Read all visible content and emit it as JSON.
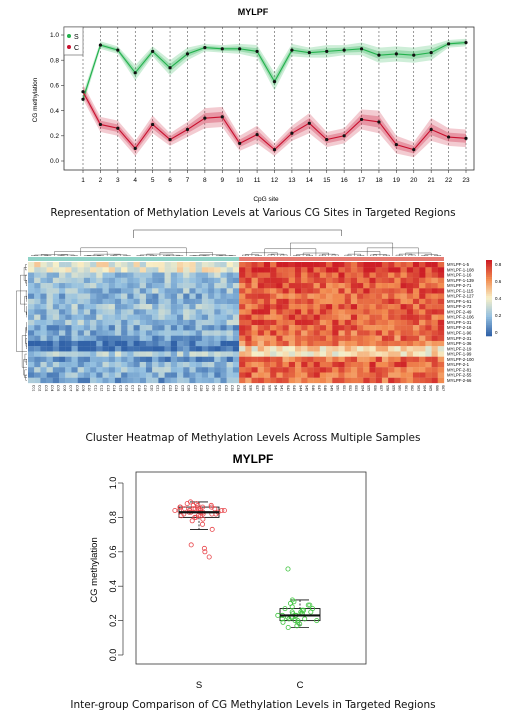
{
  "chart_data": [
    {
      "type": "line",
      "title": "MYLPF",
      "xlabel": "CpG site",
      "ylabel": "CG methylation",
      "ylim": [
        0,
        1.0
      ],
      "yticks": [
        "0.0",
        "0.2",
        "0.4",
        "0.6",
        "0.8",
        "1.0"
      ],
      "x": [
        1,
        2,
        3,
        4,
        5,
        6,
        7,
        8,
        9,
        10,
        11,
        12,
        13,
        14,
        15,
        16,
        17,
        18,
        19,
        20,
        21,
        22,
        23
      ],
      "legend_position": "top-left",
      "series": [
        {
          "name": "S",
          "color": "#22b14c",
          "values": [
            0.49,
            0.92,
            0.88,
            0.7,
            0.87,
            0.74,
            0.85,
            0.9,
            0.89,
            0.89,
            0.87,
            0.63,
            0.88,
            0.86,
            0.87,
            0.88,
            0.89,
            0.84,
            0.85,
            0.84,
            0.86,
            0.93,
            0.94
          ],
          "band": [
            0.05,
            0.03,
            0.03,
            0.06,
            0.04,
            0.06,
            0.05,
            0.03,
            0.03,
            0.04,
            0.05,
            0.07,
            0.05,
            0.04,
            0.05,
            0.04,
            0.05,
            0.06,
            0.06,
            0.06,
            0.06,
            0.03,
            0.03
          ]
        },
        {
          "name": "C",
          "color": "#c8102e",
          "values": [
            0.55,
            0.29,
            0.26,
            0.1,
            0.29,
            0.17,
            0.25,
            0.34,
            0.35,
            0.14,
            0.21,
            0.09,
            0.22,
            0.3,
            0.17,
            0.2,
            0.33,
            0.31,
            0.13,
            0.09,
            0.25,
            0.19,
            0.18
          ],
          "band": [
            0.06,
            0.06,
            0.06,
            0.06,
            0.07,
            0.05,
            0.06,
            0.08,
            0.08,
            0.06,
            0.07,
            0.05,
            0.06,
            0.08,
            0.06,
            0.06,
            0.08,
            0.09,
            0.07,
            0.06,
            0.09,
            0.07,
            0.07
          ]
        }
      ]
    },
    {
      "type": "heatmap",
      "row_labels": [
        "MYLPF-1-5",
        "MYLPF-1-108",
        "MYLPF-1-16",
        "MYLPF-1-139",
        "MYLPF-2-71",
        "MYLPF-1-115",
        "MYLPF-2-127",
        "MYLPF-1-61",
        "MYLPF-2-73",
        "MYLPF-2-49",
        "MYLPF-2-106",
        "MYLPF-1-31",
        "MYLPF-2-16",
        "MYLPF-1-96",
        "MYLPF-2-31",
        "MYLPF-1-36",
        "MYLPF-2-19",
        "MYLPF-1-99",
        "MYLPF-2-100",
        "MYLPF-2-1",
        "MYLPF-2-81",
        "MYLPF-2-55",
        "MYLPF-2-66"
      ],
      "legend_ticks": [
        "0.8",
        "0.6",
        "0.4",
        "0.2",
        "0"
      ],
      "column_groups": [
        {
          "group": "C",
          "count": 34,
          "mean_level": 0.25
        },
        {
          "group": "S",
          "count": 33,
          "mean_level": 0.85
        }
      ]
    },
    {
      "type": "box",
      "title": "MYLPF",
      "ylabel": "CG methylation",
      "categories": [
        "S",
        "C"
      ],
      "ylim": [
        0,
        1.0
      ],
      "yticks": [
        "0.0",
        "0.2",
        "0.4",
        "0.6",
        "0.8",
        "1.0"
      ],
      "boxes": [
        {
          "name": "S",
          "color": "#e8454a",
          "q1": 0.8,
          "median": 0.83,
          "q3": 0.86,
          "whisker_low": 0.73,
          "whisker_high": 0.89,
          "points": [
            0.89,
            0.88,
            0.88,
            0.87,
            0.87,
            0.87,
            0.86,
            0.86,
            0.86,
            0.86,
            0.85,
            0.85,
            0.85,
            0.85,
            0.85,
            0.85,
            0.84,
            0.84,
            0.84,
            0.84,
            0.84,
            0.84,
            0.84,
            0.83,
            0.83,
            0.83,
            0.83,
            0.83,
            0.82,
            0.82,
            0.82,
            0.82,
            0.81,
            0.81,
            0.81,
            0.8,
            0.8,
            0.79,
            0.78,
            0.76,
            0.73,
            0.64,
            0.62,
            0.6,
            0.57
          ]
        },
        {
          "name": "C",
          "color": "#3cc43c",
          "q1": 0.2,
          "median": 0.23,
          "q3": 0.27,
          "whisker_low": 0.16,
          "whisker_high": 0.32,
          "points": [
            0.5,
            0.32,
            0.31,
            0.3,
            0.29,
            0.29,
            0.28,
            0.27,
            0.27,
            0.26,
            0.26,
            0.25,
            0.25,
            0.25,
            0.24,
            0.24,
            0.24,
            0.23,
            0.23,
            0.23,
            0.23,
            0.22,
            0.22,
            0.22,
            0.21,
            0.21,
            0.21,
            0.2,
            0.2,
            0.2,
            0.19,
            0.19,
            0.18,
            0.17,
            0.16
          ]
        }
      ]
    }
  ],
  "captions": {
    "line": "Representation of Methylation Levels at Various CG Sites in Targeted Regions",
    "heatmap": "Cluster Heatmap of Methylation Levels Across Multiple Samples",
    "box": "Inter-group Comparison of CG Methylation Levels in Targeted Regions"
  }
}
